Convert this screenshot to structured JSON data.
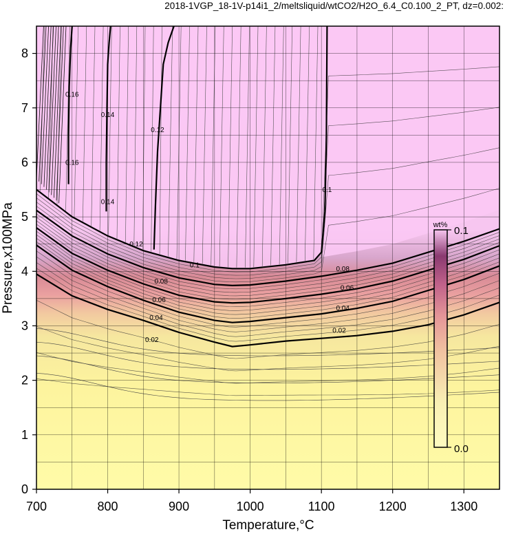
{
  "chart_data": {
    "type": "heatmap",
    "title": "2018-1VGP_18-1V-p14i1_2/meltsliquid/wtCO2/H2O_6.4_C0.100_2_PT, dz=0.002:",
    "xlabel": "Temperature,°C",
    "ylabel": "Pressure,x100MPa",
    "xlim": [
      700,
      1350
    ],
    "ylim": [
      0,
      8.5
    ],
    "xticks": [
      700,
      800,
      900,
      1000,
      1100,
      1200,
      1300
    ],
    "yticks": [
      0,
      1,
      2,
      3,
      4,
      5,
      6,
      7,
      8
    ],
    "grid": true,
    "colorbar": {
      "label": "wt%",
      "min_label": "0.0",
      "max_label": "0.1",
      "min": 0.0,
      "max": 0.1,
      "colors": [
        "#fffbb0",
        "#f5e39c",
        "#ee8f8f",
        "#b5507e",
        "#7a2a5a",
        "#f7c6f0"
      ]
    },
    "fill_colors": {
      "high_region": "#fbc8f4",
      "low_region": "#fdf8a6"
    },
    "contours": [
      {
        "level": 0.02,
        "label": "0.02",
        "x": [
          700,
          750,
          800,
          850,
          900,
          950,
          975,
          1000,
          1050,
          1100,
          1150,
          1200,
          1250,
          1300,
          1350
        ],
        "y": [
          3.95,
          3.55,
          3.3,
          3.1,
          2.88,
          2.7,
          2.62,
          2.65,
          2.72,
          2.77,
          2.82,
          2.9,
          3.02,
          3.2,
          3.43
        ]
      },
      {
        "level": 0.04,
        "label": "0.04",
        "x": [
          700,
          750,
          800,
          850,
          900,
          950,
          975,
          1000,
          1050,
          1100,
          1150,
          1200,
          1250,
          1300,
          1350
        ],
        "y": [
          4.48,
          4.02,
          3.72,
          3.47,
          3.25,
          3.1,
          3.06,
          3.08,
          3.15,
          3.22,
          3.32,
          3.45,
          3.65,
          3.85,
          4.1
        ]
      },
      {
        "level": 0.06,
        "label": "0.06",
        "x": [
          700,
          750,
          800,
          850,
          900,
          950,
          975,
          1000,
          1050,
          1100,
          1150,
          1200,
          1250,
          1300,
          1350
        ],
        "y": [
          4.8,
          4.33,
          4.02,
          3.77,
          3.56,
          3.44,
          3.42,
          3.43,
          3.5,
          3.58,
          3.68,
          3.82,
          4.02,
          4.22,
          4.47
        ]
      },
      {
        "level": 0.08,
        "label": "0.08",
        "x": [
          700,
          750,
          800,
          850,
          900,
          950,
          975,
          1000,
          1050,
          1100,
          1150,
          1200,
          1250,
          1300,
          1350
        ],
        "y": [
          5.12,
          4.65,
          4.32,
          4.07,
          3.88,
          3.76,
          3.74,
          3.75,
          3.82,
          3.91,
          4.02,
          4.15,
          4.35,
          4.55,
          4.78
        ]
      },
      {
        "level": 0.1,
        "label": "0.1",
        "x": [
          700,
          750,
          800,
          850,
          900,
          950,
          975,
          1000,
          1050,
          1090,
          1100,
          1105,
          1107,
          1108
        ],
        "y": [
          5.5,
          5.0,
          4.65,
          4.38,
          4.2,
          4.08,
          4.05,
          4.05,
          4.12,
          4.2,
          4.35,
          5.1,
          6.5,
          8.5
        ]
      },
      {
        "level": 0.12,
        "label": "0.12",
        "x": [
          865,
          867,
          870,
          875,
          878,
          885,
          893
        ],
        "y": [
          4.4,
          5.2,
          6.2,
          7.2,
          7.8,
          8.2,
          8.5
        ]
      },
      {
        "level": 0.14,
        "label": "0.14",
        "x": [
          798,
          798,
          799,
          800,
          802,
          804
        ],
        "y": [
          5.1,
          6.0,
          7.0,
          7.8,
          8.2,
          8.5
        ]
      },
      {
        "level": 0.16,
        "label": "0.16",
        "x": [
          745,
          745,
          746,
          748,
          750
        ],
        "y": [
          5.6,
          6.5,
          7.4,
          8.1,
          8.5
        ]
      }
    ],
    "contour_labels": [
      {
        "text": "0.02",
        "x": 862,
        "y": 2.75
      },
      {
        "text": "0.04",
        "x": 868,
        "y": 3.15
      },
      {
        "text": "0.06",
        "x": 872,
        "y": 3.48
      },
      {
        "text": "0.08",
        "x": 875,
        "y": 3.82
      },
      {
        "text": "0.1",
        "x": 922,
        "y": 4.12
      },
      {
        "text": "0.12",
        "x": 840,
        "y": 4.5
      },
      {
        "text": "0.14",
        "x": 800,
        "y": 5.28
      },
      {
        "text": "0.16",
        "x": 750,
        "y": 6.0
      },
      {
        "text": "0.16",
        "x": 750,
        "y": 7.25
      },
      {
        "text": "0.14",
        "x": 800,
        "y": 6.88
      },
      {
        "text": "0.12",
        "x": 870,
        "y": 6.6
      },
      {
        "text": "0.1",
        "x": 1108,
        "y": 5.5
      },
      {
        "text": "0.08",
        "x": 1130,
        "y": 4.05
      },
      {
        "text": "0.06",
        "x": 1136,
        "y": 3.7
      },
      {
        "text": "0.04",
        "x": 1130,
        "y": 3.33
      },
      {
        "text": "0.02",
        "x": 1125,
        "y": 2.92
      }
    ]
  }
}
